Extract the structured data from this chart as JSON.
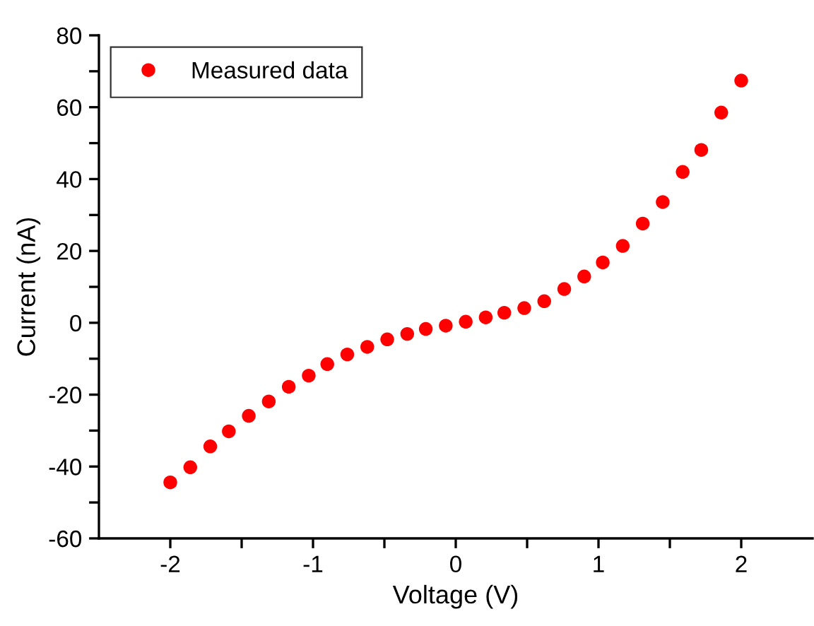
{
  "chart_data": {
    "type": "scatter",
    "xlabel": "Voltage (V)",
    "ylabel": "Current (nA)",
    "series": [
      {
        "name": "Measured data",
        "color": "#ff0000",
        "x": [
          -2,
          -1.86,
          -1.72,
          -1.59,
          -1.45,
          -1.31,
          -1.17,
          -1.03,
          -0.9,
          -0.76,
          -0.62,
          -0.48,
          -0.34,
          -0.21,
          -0.07,
          0.07,
          0.21,
          0.34,
          0.48,
          0.62,
          0.76,
          0.9,
          1.03,
          1.17,
          1.31,
          1.45,
          1.59,
          1.72,
          1.86,
          2
        ],
        "values": [
          -44.4,
          -40.2,
          -34.4,
          -30.2,
          -25.9,
          -21.9,
          -17.8,
          -14.7,
          -11.5,
          -8.8,
          -6.7,
          -4.6,
          -3.1,
          -1.7,
          -0.8,
          0.3,
          1.5,
          2.8,
          4.1,
          6.0,
          9.4,
          12.9,
          16.8,
          21.4,
          27.6,
          33.6,
          42.0,
          48.1,
          58.5,
          67.4
        ]
      }
    ],
    "xlim": [
      -2.5,
      2.5
    ],
    "xticks": [
      -2,
      {
        "value": -1.5,
        "label": null
      },
      -1,
      {
        "value": -0.5,
        "label": null
      },
      0,
      {
        "value": 0.5,
        "label": null
      },
      1,
      {
        "value": 1.5,
        "label": null
      },
      2
    ],
    "ylim": [
      -60,
      80
    ],
    "yticks": [
      -60,
      {
        "value": -50,
        "label": null
      },
      -40,
      {
        "value": -30,
        "label": null
      },
      -20,
      {
        "value": -10,
        "label": null
      },
      0,
      {
        "value": 10,
        "label": null
      },
      20,
      {
        "value": 30,
        "label": null
      },
      40,
      {
        "value": 50,
        "label": null
      },
      60,
      {
        "value": 70,
        "label": null
      },
      80
    ],
    "marker": "circle",
    "legend": "top left",
    "grid": false
  }
}
